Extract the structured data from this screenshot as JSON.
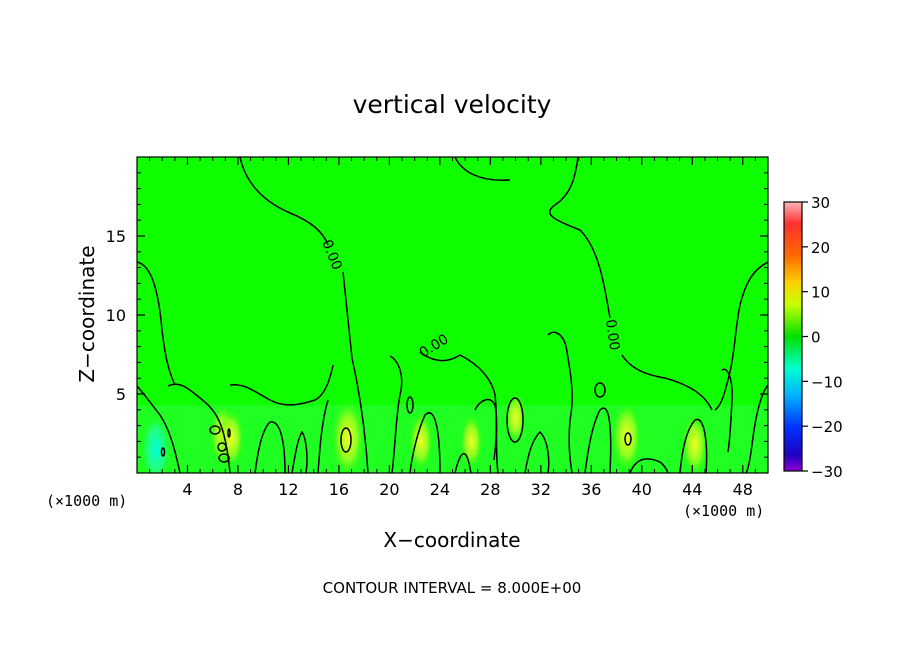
{
  "chart_data": {
    "type": "heatmap",
    "title": "vertical velocity",
    "xlabel": "X−coordinate",
    "ylabel": "Z−coordinate",
    "x_unit_left": "(×1000 m)",
    "x_unit_right": "(×1000 m)",
    "xlim": [
      0,
      50
    ],
    "ylim": [
      0,
      20
    ],
    "x_ticks": [
      4,
      8,
      12,
      16,
      20,
      24,
      28,
      32,
      36,
      40,
      44,
      48
    ],
    "y_ticks": [
      5,
      10,
      15
    ],
    "colorbar": {
      "min": -30,
      "max": 30,
      "ticks": [
        30,
        20,
        10,
        0,
        -10,
        -20,
        -30
      ],
      "tick_labels": [
        "30",
        "20",
        "10",
        "0",
        "−10",
        "−20",
        "−30"
      ]
    },
    "contour_labels": [
      "0.00",
      "0.00",
      "0.00"
    ],
    "footer": "CONTOUR INTERVAL = 8.000E+00",
    "field_background_value": 0,
    "updrafts": [
      {
        "x": 1.5,
        "z": 1.5,
        "w": -8
      },
      {
        "x": 6.8,
        "z": 2.4,
        "w": 6
      },
      {
        "x": 7.5,
        "z": 2.2,
        "w": 5
      },
      {
        "x": 16.7,
        "z": 2.2,
        "w": 10
      },
      {
        "x": 22.5,
        "z": 2.0,
        "w": 5
      },
      {
        "x": 26.5,
        "z": 2.0,
        "w": 4
      },
      {
        "x": 30.0,
        "z": 3.5,
        "w": 3
      },
      {
        "x": 38.8,
        "z": 2.3,
        "w": 8
      },
      {
        "x": 44.2,
        "z": 1.8,
        "w": 6
      }
    ]
  }
}
